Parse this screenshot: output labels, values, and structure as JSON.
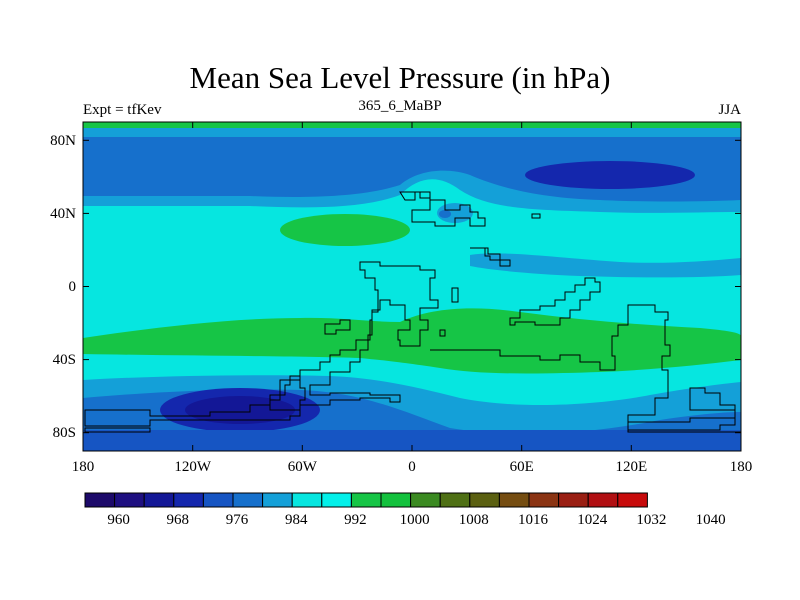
{
  "title": "Mean Sea Level Pressure (in hPa)",
  "subtitle_left": "Expt = tfKev",
  "subtitle_center": "365_6_MaBP",
  "subtitle_right": "JJA",
  "map": {
    "lon_range": [
      -180,
      180
    ],
    "lat_range": [
      -90,
      90
    ],
    "x_ticks": [
      "180",
      "120W",
      "60W",
      "0",
      "60E",
      "120E",
      "180"
    ],
    "y_ticks": [
      "80N",
      "40N",
      "0",
      "40S",
      "80S"
    ]
  },
  "colorbar": {
    "colors": [
      "#1d0a6a",
      "#1e0f80",
      "#131796",
      "#1427ad",
      "#1655c3",
      "#1670cc",
      "#14a0d8",
      "#06e6e0",
      "#04f0ea",
      "#16c546",
      "#13c13d",
      "#3b8a21",
      "#4f7015",
      "#5b6011",
      "#754d11",
      "#8b3413",
      "#9a1f13",
      "#b10f12",
      "#c70a0b"
    ],
    "labels": [
      "960",
      "968",
      "976",
      "984",
      "992",
      "1000",
      "1008",
      "1016",
      "1024",
      "1032",
      "1040"
    ]
  }
}
